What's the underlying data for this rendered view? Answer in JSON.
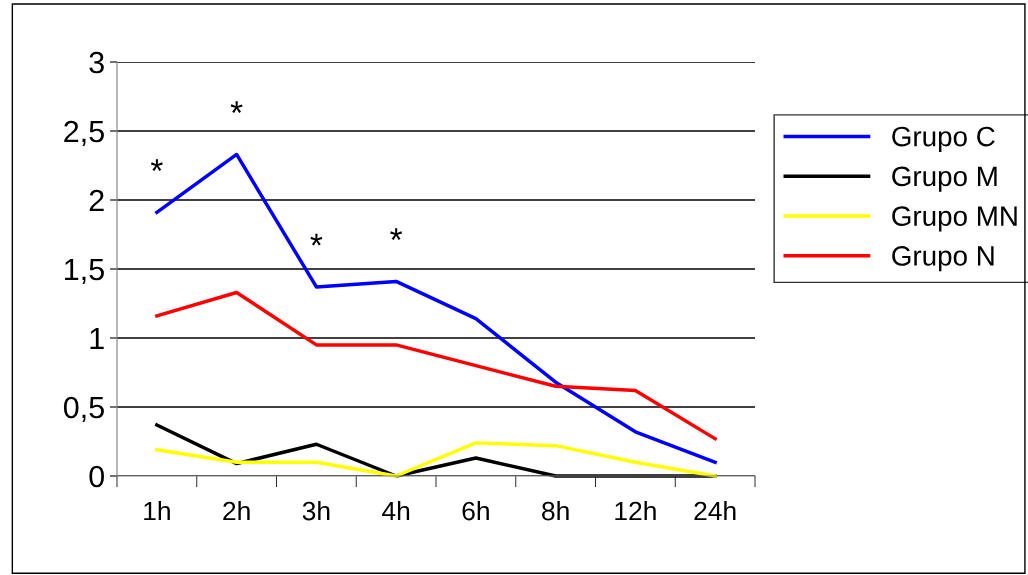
{
  "chart_data": {
    "type": "line",
    "categories": [
      "1h",
      "2h",
      "3h",
      "4h",
      "6h",
      "8h",
      "12h",
      "24h"
    ],
    "series": [
      {
        "name": "Grupo C",
        "color": "#0000ff",
        "values": [
          1.91,
          2.33,
          1.37,
          1.41,
          1.14,
          0.68,
          0.32,
          0.1
        ]
      },
      {
        "name": "Grupo M",
        "color": "#000000",
        "values": [
          0.37,
          0.09,
          0.23,
          0,
          0.13,
          0,
          0,
          0
        ]
      },
      {
        "name": "Grupo MN",
        "color": "#ffff00",
        "values": [
          0.19,
          0.1,
          0.1,
          0,
          0.24,
          0.22,
          0.1,
          0
        ]
      },
      {
        "name": "Grupo N",
        "color": "#ff0000",
        "values": [
          1.16,
          1.33,
          0.95,
          0.95,
          0.8,
          0.65,
          0.62,
          0.27
        ]
      }
    ],
    "ylim": [
      0,
      3
    ],
    "yticks": [
      0,
      {
        "value": 0.5,
        "label": "0,5"
      },
      1,
      {
        "value": 1.5,
        "label": "1,5"
      },
      2,
      {
        "value": 2.5,
        "label": "2,5"
      },
      3
    ],
    "grid": "y",
    "legend": "right",
    "marker": "none",
    "line_style": "solid",
    "annotations": [
      "*",
      "*",
      "*",
      "*"
    ]
  }
}
